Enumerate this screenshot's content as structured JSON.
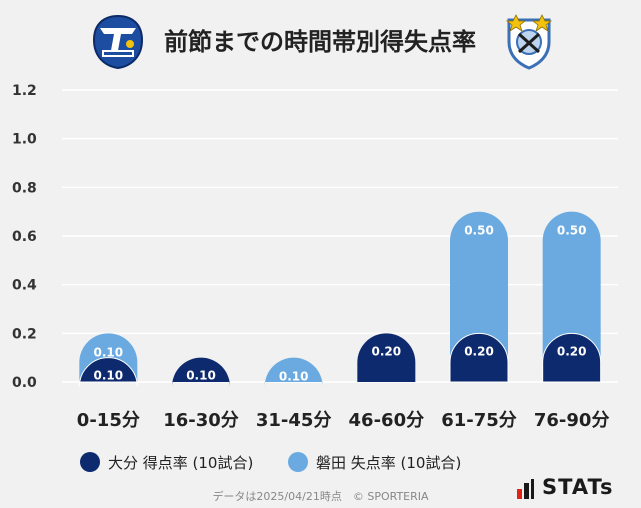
{
  "header": {
    "title": "前節までの時間帯別得失点率",
    "left_logo": "oita-trinita-crest-icon",
    "right_logo": "jubilo-iwata-crest-icon"
  },
  "chart_data": {
    "type": "bar",
    "stacked": true,
    "categories": [
      "0-15分",
      "16-30分",
      "31-45分",
      "46-60分",
      "61-75分",
      "76-90分"
    ],
    "series": [
      {
        "name": "大分 得点率 (10試合)",
        "color": "#0e2a6e",
        "values": [
          0.1,
          0.1,
          0.0,
          0.2,
          0.2,
          0.2
        ]
      },
      {
        "name": "磐田 失点率 (10試合)",
        "color": "#6aaae0",
        "values": [
          0.1,
          0.0,
          0.1,
          0.0,
          0.5,
          0.5
        ]
      }
    ],
    "ylim": [
      0,
      1.2
    ],
    "yticks": [
      "0.0",
      "0.2",
      "0.4",
      "0.6",
      "0.8",
      "1.0",
      "1.2"
    ],
    "grid": true,
    "legend_position": "bottom-left"
  },
  "footer": {
    "note": "データは2025/04/21時点　© SPORTERIA",
    "brand": "STATs",
    "brand_icon": "stats-bars-icon"
  }
}
